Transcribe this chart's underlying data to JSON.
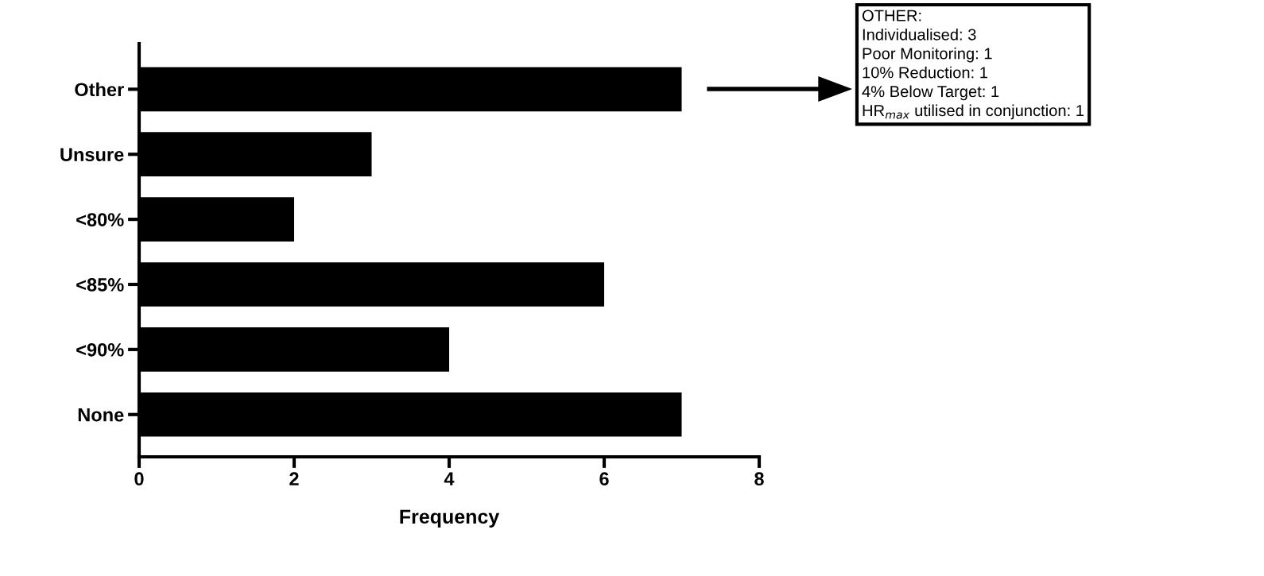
{
  "chart_data": {
    "type": "bar",
    "orientation": "horizontal",
    "categories": [
      "Other",
      "Unsure",
      "<80%",
      "<85%",
      "<90%",
      "None"
    ],
    "values": [
      7,
      3,
      2,
      6,
      4,
      7
    ],
    "color": "#000000",
    "xlim": [
      0,
      8
    ],
    "xticks": [
      0,
      2,
      4,
      6,
      8
    ],
    "xlabel": "Frequency",
    "grid": false,
    "legend": false,
    "annotations": [
      "OTHER:",
      "Individualised: 3",
      "Poor Monitoring: 1",
      "10% Reduction: 1",
      "4% Below Target: 1",
      "HR$_{max}$ utilised in conjunction: 1"
    ]
  }
}
